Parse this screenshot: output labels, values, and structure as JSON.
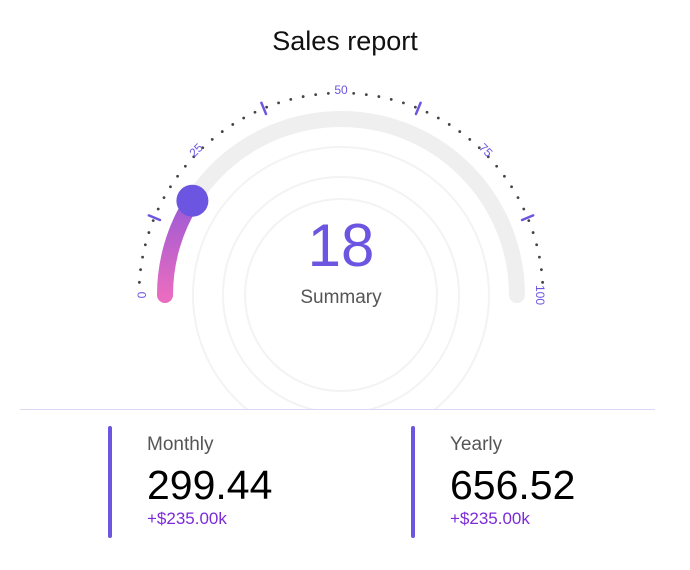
{
  "title": "Sales report",
  "chart_data": {
    "type": "gauge",
    "min": 0,
    "max": 100,
    "value": 18,
    "value_label": "18",
    "center_label": "Summary",
    "tick_labels": [
      "0",
      "25",
      "50",
      "75",
      "100"
    ],
    "colors": {
      "progress_start": "#e86cc0",
      "progress_end": "#9b59d6",
      "knob": "#6c55e0",
      "track": "#efefef",
      "value_text": "#6c55e0",
      "tick": "#6c55e0",
      "dots": "#444444"
    }
  },
  "stats": [
    {
      "label": "Monthly",
      "value": "299.44",
      "change": "+$235.00k"
    },
    {
      "label": "Yearly",
      "value": "656.52",
      "change": "+$235.00k"
    }
  ]
}
